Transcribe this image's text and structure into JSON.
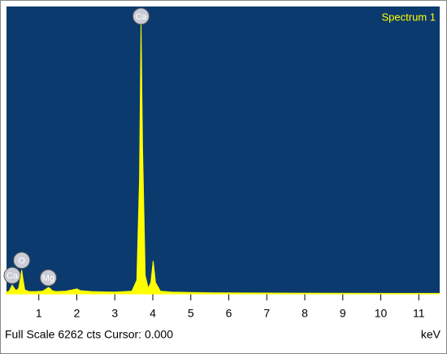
{
  "chart_data": {
    "type": "area",
    "title": "Spectrum 1",
    "x_label": "keV",
    "footer": "Full Scale 6262 cts Cursor: 0.000",
    "x": [
      0.15,
      0.22,
      0.28,
      0.3,
      0.33,
      0.4,
      0.47,
      0.52,
      0.55,
      0.58,
      0.63,
      0.75,
      0.9,
      1.1,
      1.2,
      1.25,
      1.3,
      1.35,
      1.45,
      1.7,
      1.9,
      2.0,
      2.1,
      2.4,
      3.0,
      3.45,
      3.58,
      3.65,
      3.69,
      3.73,
      3.8,
      3.88,
      3.95,
      4.01,
      4.07,
      4.2,
      4.5,
      5.0,
      5.6,
      6.5,
      8.0,
      10.0,
      11.55
    ],
    "values": [
      40,
      60,
      160,
      190,
      150,
      70,
      120,
      350,
      520,
      340,
      90,
      50,
      50,
      60,
      110,
      140,
      120,
      70,
      50,
      60,
      90,
      110,
      70,
      50,
      40,
      60,
      300,
      2500,
      5900,
      3200,
      400,
      120,
      250,
      720,
      250,
      60,
      40,
      30,
      25,
      20,
      15,
      10,
      10
    ],
    "color": "#ffff00",
    "background": "#0b3a6e",
    "xlim": [
      0.15,
      11.55
    ],
    "ylim": [
      0,
      6262
    ],
    "xticks": [
      1,
      2,
      3,
      4,
      5,
      6,
      7,
      8,
      9,
      10,
      11
    ],
    "peaks": [
      {
        "label": "Ca",
        "x": 0.3,
        "y": 190
      },
      {
        "label": "O",
        "x": 0.55,
        "y": 520
      },
      {
        "label": "Mg",
        "x": 1.25,
        "y": 140
      },
      {
        "label": "Ca",
        "x": 3.69,
        "y": 5900
      }
    ]
  }
}
